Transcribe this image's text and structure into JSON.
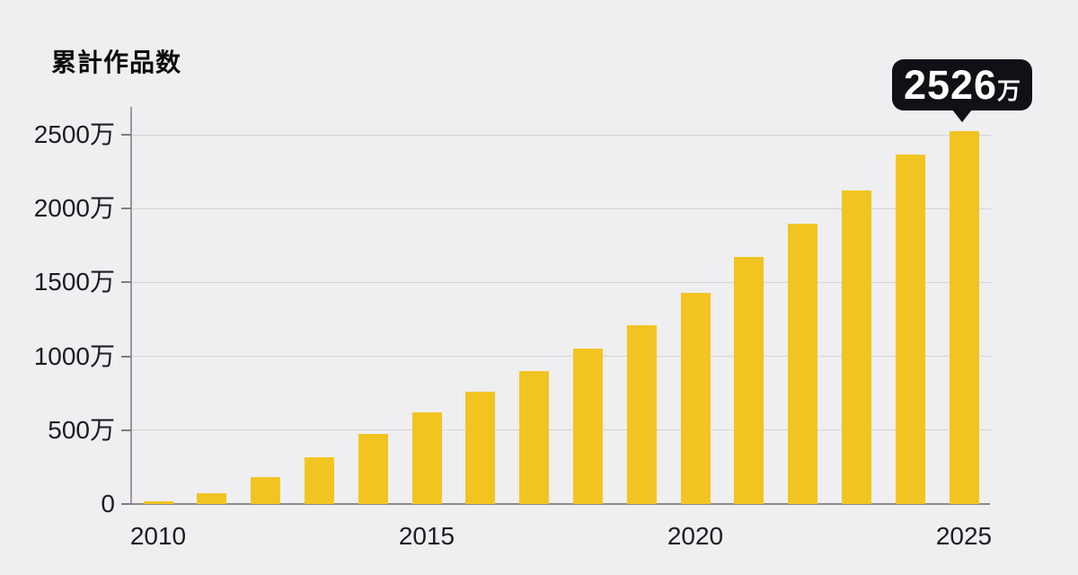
{
  "title": "累計作品数",
  "callout": {
    "value": "2526",
    "unit": "万"
  },
  "colors": {
    "background": "#efeef0",
    "bar": "#f2c422",
    "axis": "#8b898e",
    "gridline": "#d4d2d5",
    "label_text": "#1e1c21",
    "callout_background": "#121014",
    "callout_text": "#ffffff"
  },
  "chart_data": {
    "type": "bar",
    "title": "累計作品数",
    "unit": "万",
    "categories": [
      "2010",
      "2011",
      "2012",
      "2013",
      "2014",
      "2015",
      "2016",
      "2017",
      "2018",
      "2019",
      "2020",
      "2021",
      "2022",
      "2023",
      "2024",
      "2025"
    ],
    "values": [
      20,
      75,
      180,
      315,
      475,
      620,
      760,
      900,
      1050,
      1210,
      1430,
      1670,
      1895,
      2125,
      2365,
      2526
    ],
    "x_tick_labels": [
      "2010",
      "2015",
      "2020",
      "2025"
    ],
    "y_tick_values": [
      0,
      500,
      1000,
      1500,
      2000,
      2500
    ],
    "y_tick_labels": [
      "0",
      "500万",
      "1000万",
      "1500万",
      "2000万",
      "2500万"
    ],
    "ylim": [
      0,
      2630
    ],
    "grid": true,
    "legend": false,
    "annotation": {
      "category": "2025",
      "text": "2526万"
    }
  }
}
